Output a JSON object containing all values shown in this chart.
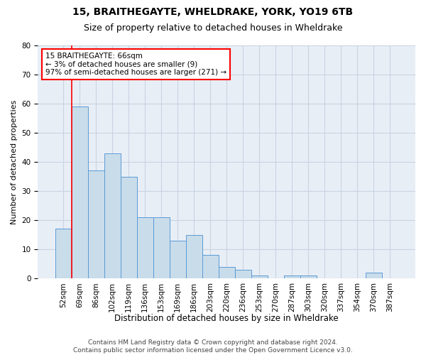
{
  "title1": "15, BRAITHEGAYTE, WHELDRAKE, YORK, YO19 6TB",
  "title2": "Size of property relative to detached houses in Wheldrake",
  "xlabel": "Distribution of detached houses by size in Wheldrake",
  "ylabel": "Number of detached properties",
  "categories": [
    "52sqm",
    "69sqm",
    "86sqm",
    "102sqm",
    "119sqm",
    "136sqm",
    "153sqm",
    "169sqm",
    "186sqm",
    "203sqm",
    "220sqm",
    "236sqm",
    "253sqm",
    "270sqm",
    "287sqm",
    "303sqm",
    "320sqm",
    "337sqm",
    "354sqm",
    "370sqm",
    "387sqm"
  ],
  "values": [
    17,
    59,
    37,
    43,
    35,
    21,
    21,
    13,
    15,
    8,
    4,
    3,
    1,
    0,
    1,
    1,
    0,
    0,
    0,
    2,
    0
  ],
  "bar_color": "#c9dcea",
  "bar_edge_color": "#5b9bd5",
  "annotation_text": "15 BRAITHEGAYTE: 66sqm\n← 3% of detached houses are smaller (9)\n97% of semi-detached houses are larger (271) →",
  "annotation_box_color": "white",
  "annotation_box_edge_color": "red",
  "vline_color": "red",
  "ylim": [
    0,
    80
  ],
  "yticks": [
    0,
    10,
    20,
    30,
    40,
    50,
    60,
    70,
    80
  ],
  "grid_color": "#c8d4e3",
  "background_color": "#e8eef6",
  "footer_text": "Contains HM Land Registry data © Crown copyright and database right 2024.\nContains public sector information licensed under the Open Government Licence v3.0.",
  "title1_fontsize": 10,
  "title2_fontsize": 9,
  "xlabel_fontsize": 8.5,
  "ylabel_fontsize": 8,
  "tick_fontsize": 7.5,
  "annotation_fontsize": 7.5,
  "footer_fontsize": 6.5
}
